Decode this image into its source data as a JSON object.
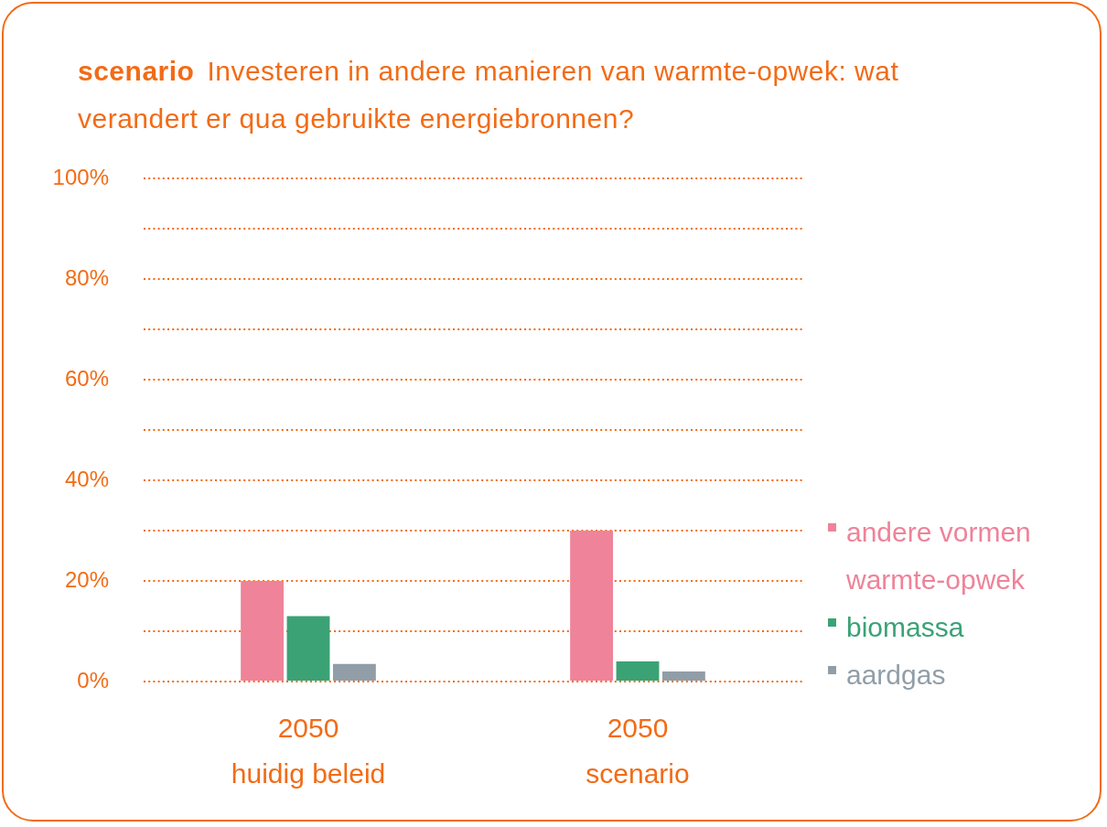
{
  "chart_data": {
    "type": "bar",
    "title": "scenario",
    "subtitle": "Investeren in andere manieren van warmte-opwek: wat verandert er qua gebruikte energiebronnen?",
    "categories": [
      "2050\nhuidig beleid",
      "2050\nscenario"
    ],
    "series": [
      {
        "name": "andere vormen warmte-opwek",
        "color": "#ee8399",
        "values": [
          20,
          30
        ]
      },
      {
        "name": "biomassa",
        "color": "#3ba275",
        "values": [
          13,
          4
        ]
      },
      {
        "name": "aardgas",
        "color": "#919ea8",
        "values": [
          3.5,
          2
        ]
      }
    ],
    "ylim": [
      0,
      100
    ],
    "yticks": [
      {
        "value": 0,
        "label": "0%"
      },
      {
        "value": 10,
        "label": null
      },
      {
        "value": 20,
        "label": "20%"
      },
      {
        "value": 30,
        "label": null
      },
      {
        "value": 40,
        "label": "40%"
      },
      {
        "value": 50,
        "label": null
      },
      {
        "value": 60,
        "label": "60%"
      },
      {
        "value": 70,
        "label": null
      },
      {
        "value": 80,
        "label": "80%"
      },
      {
        "value": 90,
        "label": null
      },
      {
        "value": 100,
        "label": "100%"
      }
    ],
    "grid": "y",
    "legend": "right"
  }
}
